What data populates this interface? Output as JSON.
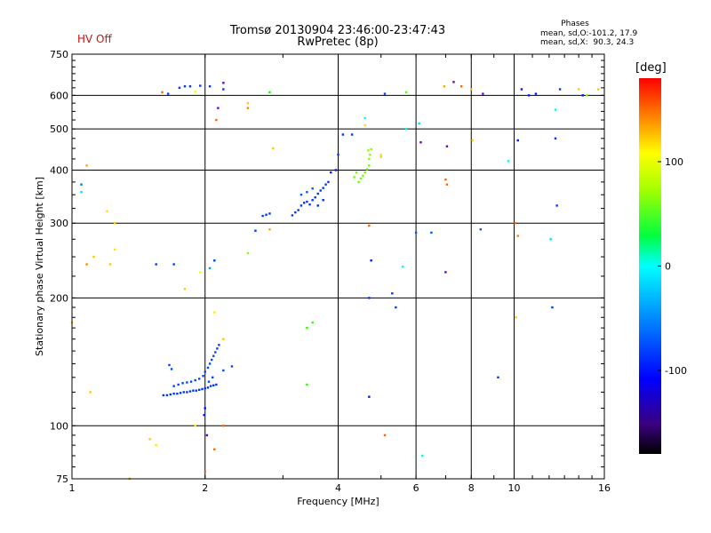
{
  "header": {
    "status": "HV Off",
    "title_line1": "Tromsø 20130904 23:46:00-23:47:43",
    "title_line2": "RwPretec (8p)",
    "phase_title": "Phases",
    "phase_line1": "mean, sd,O:-101.2, 17.9",
    "phase_line2": "mean, sd,X:  90.3, 24.3"
  },
  "colors": {
    "status": "#cc1111",
    "gridline": "#000000"
  },
  "chart_data": {
    "type": "scatter",
    "title": "Tromsø 20130904 23:46:00-23:47:43",
    "subtitle": "RwPretec (8p)",
    "xlabel": "Frequency [MHz]",
    "ylabel": "Stationary phase Virtual Height [km]",
    "x_scale": "log",
    "y_scale": "log",
    "xlim": [
      1,
      16
    ],
    "ylim": [
      75,
      750
    ],
    "x_ticks": [
      1,
      2,
      4,
      6,
      8,
      10,
      16
    ],
    "y_ticks": [
      75,
      100,
      200,
      300,
      400,
      500,
      600,
      750
    ],
    "grid": true,
    "colorbar": {
      "label": "[deg]",
      "range": [
        -180,
        180
      ],
      "ticks": [
        100,
        0,
        -100
      ]
    },
    "points": [
      [
        1.61,
        118,
        -110
      ],
      [
        1.64,
        118,
        -110
      ],
      [
        1.67,
        118.5,
        -110
      ],
      [
        1.7,
        119,
        -110
      ],
      [
        1.73,
        119,
        -110
      ],
      [
        1.76,
        119.5,
        -110
      ],
      [
        1.79,
        120,
        -110
      ],
      [
        1.82,
        120,
        -110
      ],
      [
        1.85,
        120.5,
        -110
      ],
      [
        1.88,
        121,
        -110
      ],
      [
        1.91,
        121,
        -110
      ],
      [
        1.94,
        121.5,
        -110
      ],
      [
        1.97,
        122,
        -110
      ],
      [
        2.0,
        122.5,
        -110
      ],
      [
        2.03,
        123,
        -110
      ],
      [
        2.06,
        124,
        -110
      ],
      [
        2.09,
        124.5,
        -110
      ],
      [
        2.12,
        125,
        -110
      ],
      [
        1.7,
        124,
        -105
      ],
      [
        1.74,
        125,
        -105
      ],
      [
        1.78,
        126,
        -105
      ],
      [
        1.82,
        126.5,
        -105
      ],
      [
        1.86,
        127,
        -105
      ],
      [
        1.9,
        128,
        -105
      ],
      [
        1.94,
        129,
        -105
      ],
      [
        1.98,
        131,
        -105
      ],
      [
        2.0,
        134,
        -105
      ],
      [
        2.03,
        137,
        -105
      ],
      [
        2.05,
        140,
        -105
      ],
      [
        2.07,
        143,
        -105
      ],
      [
        2.09,
        146,
        -105
      ],
      [
        2.11,
        149,
        -105
      ],
      [
        2.13,
        152,
        -105
      ],
      [
        2.15,
        155,
        -105
      ],
      [
        1.66,
        139,
        -105
      ],
      [
        1.68,
        136,
        -105
      ],
      [
        2.0,
        110,
        -120
      ],
      [
        1.99,
        106,
        -120
      ],
      [
        2.04,
        127,
        -105
      ],
      [
        2.08,
        130,
        -105
      ],
      [
        2.2,
        135,
        -105
      ],
      [
        2.3,
        138,
        -105
      ],
      [
        2.7,
        312,
        -110
      ],
      [
        2.75,
        314,
        -110
      ],
      [
        2.8,
        316,
        -110
      ],
      [
        3.15,
        313,
        -110
      ],
      [
        3.2,
        318,
        -110
      ],
      [
        3.25,
        322,
        -110
      ],
      [
        3.3,
        330,
        -110
      ],
      [
        3.35,
        335,
        -110
      ],
      [
        3.4,
        337,
        -110
      ],
      [
        3.45,
        332,
        -110
      ],
      [
        3.5,
        340,
        -110
      ],
      [
        3.55,
        345,
        -110
      ],
      [
        3.6,
        352,
        -110
      ],
      [
        3.65,
        358,
        -110
      ],
      [
        3.7,
        363,
        -110
      ],
      [
        3.75,
        370,
        -110
      ],
      [
        3.8,
        375,
        -110
      ],
      [
        3.85,
        395,
        -120
      ],
      [
        3.95,
        400,
        -120
      ],
      [
        3.3,
        350,
        -100
      ],
      [
        3.4,
        355,
        -100
      ],
      [
        3.5,
        362,
        -100
      ],
      [
        3.6,
        330,
        -115
      ],
      [
        3.7,
        340,
        -115
      ],
      [
        4.1,
        485,
        -110
      ],
      [
        4.3,
        485,
        -110
      ],
      [
        4.45,
        375,
        60
      ],
      [
        4.5,
        382,
        60
      ],
      [
        4.55,
        388,
        60
      ],
      [
        4.6,
        395,
        60
      ],
      [
        4.65,
        402,
        60
      ],
      [
        4.7,
        410,
        60
      ],
      [
        4.7,
        425,
        65
      ],
      [
        4.72,
        435,
        70
      ],
      [
        4.75,
        448,
        70
      ],
      [
        4.68,
        445,
        70
      ],
      [
        4.4,
        395,
        60
      ],
      [
        4.35,
        385,
        60
      ],
      [
        1.65,
        605,
        -110
      ],
      [
        1.75,
        625,
        -110
      ],
      [
        1.8,
        630,
        -110
      ],
      [
        1.85,
        630,
        -110
      ],
      [
        1.95,
        632,
        -110
      ],
      [
        2.05,
        630,
        -110
      ],
      [
        2.2,
        620,
        -110
      ],
      [
        1.6,
        610,
        150
      ],
      [
        1.9,
        612,
        100
      ],
      [
        2.12,
        525,
        150
      ],
      [
        2.14,
        560,
        -130
      ],
      [
        2.5,
        575,
        120
      ],
      [
        2.5,
        560,
        140
      ],
      [
        2.8,
        610,
        30
      ],
      [
        2.2,
        642,
        -130
      ],
      [
        1.05,
        370,
        -90
      ],
      [
        1.05,
        355,
        -60
      ],
      [
        1.08,
        410,
        130
      ],
      [
        1.08,
        240,
        140
      ],
      [
        1.12,
        250,
        120
      ],
      [
        1.2,
        320,
        110
      ],
      [
        1.22,
        240,
        120
      ],
      [
        1.25,
        300,
        120
      ],
      [
        1.25,
        260,
        110
      ],
      [
        1.55,
        240,
        -110
      ],
      [
        1.7,
        240,
        -110
      ],
      [
        1.8,
        210,
        120
      ],
      [
        1.95,
        230,
        100
      ],
      [
        2.05,
        235,
        -80
      ],
      [
        2.1,
        245,
        -110
      ],
      [
        2.1,
        185,
        110
      ],
      [
        2.2,
        160,
        120
      ],
      [
        2.5,
        255,
        70
      ],
      [
        2.6,
        288,
        -110
      ],
      [
        2.8,
        290,
        130
      ],
      [
        2.85,
        450,
        120
      ],
      [
        3.4,
        125,
        40
      ],
      [
        3.5,
        175,
        40
      ],
      [
        3.4,
        170,
        40
      ],
      [
        4.0,
        435,
        -110
      ],
      [
        1.1,
        120,
        120
      ],
      [
        1.5,
        93,
        120
      ],
      [
        1.55,
        90,
        110
      ],
      [
        1.9,
        100,
        110
      ],
      [
        2.0,
        78,
        150
      ],
      [
        2.02,
        95,
        -130
      ],
      [
        2.1,
        88,
        150
      ],
      [
        2.2,
        100,
        150
      ],
      [
        1.35,
        75,
        130
      ],
      [
        1.0,
        175,
        120
      ],
      [
        4.7,
        296,
        150
      ],
      [
        4.75,
        245,
        -120
      ],
      [
        4.7,
        200,
        -110
      ],
      [
        4.7,
        117,
        -120
      ],
      [
        5.0,
        435,
        110
      ],
      [
        5.0,
        430,
        120
      ],
      [
        5.1,
        95,
        150
      ],
      [
        5.1,
        605,
        -110
      ],
      [
        5.3,
        205,
        -110
      ],
      [
        5.4,
        190,
        -110
      ],
      [
        5.6,
        237,
        -50
      ],
      [
        5.7,
        500,
        -40
      ],
      [
        6.0,
        285,
        -100
      ],
      [
        6.1,
        515,
        -60
      ],
      [
        6.15,
        465,
        -130
      ],
      [
        6.2,
        85,
        -40
      ],
      [
        6.5,
        285,
        -100
      ],
      [
        6.95,
        630,
        130
      ],
      [
        7.0,
        380,
        150
      ],
      [
        7.05,
        455,
        -130
      ],
      [
        7.3,
        645,
        -130
      ],
      [
        7.6,
        630,
        150
      ],
      [
        8.0,
        620,
        120
      ],
      [
        8.05,
        470,
        120
      ],
      [
        8.4,
        290,
        -100
      ],
      [
        8.5,
        605,
        -130
      ],
      [
        9.2,
        130,
        -110
      ],
      [
        9.7,
        420,
        -40
      ],
      [
        10.1,
        180,
        120
      ],
      [
        10.2,
        470,
        -120
      ],
      [
        10.2,
        280,
        140
      ],
      [
        10.4,
        620,
        -120
      ],
      [
        10.8,
        600,
        -120
      ],
      [
        11.2,
        605,
        -120
      ],
      [
        12.1,
        275,
        -60
      ],
      [
        12.2,
        190,
        -110
      ],
      [
        12.4,
        475,
        -110
      ],
      [
        12.5,
        330,
        -110
      ],
      [
        12.7,
        620,
        -110
      ],
      [
        14.0,
        620,
        120
      ],
      [
        14.3,
        600,
        -120
      ],
      [
        14.6,
        600,
        60
      ],
      [
        15.5,
        620,
        120
      ],
      [
        7.0,
        230,
        -130
      ],
      [
        7.05,
        370,
        150
      ],
      [
        4.6,
        510,
        110
      ],
      [
        4.6,
        530,
        -50
      ],
      [
        10.05,
        300,
        150
      ],
      [
        5.7,
        610,
        50
      ],
      [
        12.4,
        555,
        -40
      ]
    ]
  }
}
